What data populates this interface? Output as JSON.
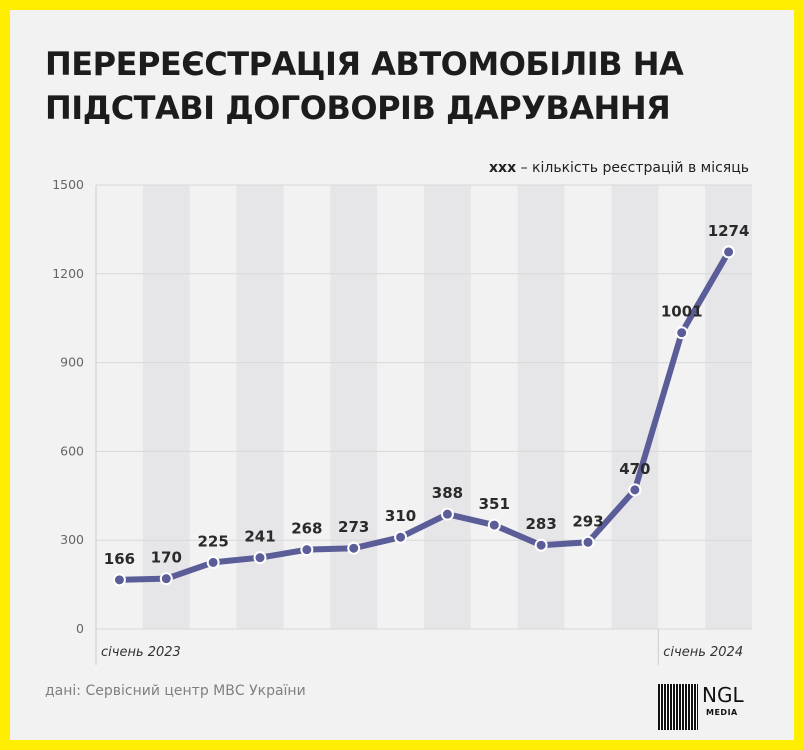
{
  "header": {
    "title_line1": "ПЕРЕРЕЄСТРАЦІЯ АВТОМОБІЛІВ НА",
    "title_line2": "ПІДСТАВІ ДОГОВОРІВ ДАРУВАННЯ"
  },
  "legend_note": {
    "marker": "xxx",
    "text": " – кількість реєстрацій в місяць"
  },
  "source": "дані: Сервісний центр МВС України",
  "logo": {
    "name": "NGL",
    "sub": "MEDIA"
  },
  "colors": {
    "background": "#ffee00",
    "card": "#f2f2f2",
    "band": "#e6e6e9",
    "line": "#5b5d99",
    "label": "#2a2a2a"
  },
  "chart_data": {
    "type": "line",
    "title": "ПЕРЕРЕЄСТРАЦІЯ АВТОМОБІЛІВ НА ПІДСТАВІ ДОГОВОРІВ ДАРУВАННЯ",
    "xlabel": "",
    "ylabel": "",
    "ylim": [
      0,
      1500
    ],
    "yticks": [
      0,
      300,
      600,
      900,
      1200,
      1500
    ],
    "x": [
      "2023-01",
      "2023-02",
      "2023-03",
      "2023-04",
      "2023-05",
      "2023-06",
      "2023-07",
      "2023-08",
      "2023-09",
      "2023-10",
      "2023-11",
      "2023-12",
      "2024-01",
      "2024-02"
    ],
    "x_tick_labels": [
      {
        "index": 0,
        "label": "січень 2023"
      },
      {
        "index": 12,
        "label": "січень 2024"
      }
    ],
    "series": [
      {
        "values": [
          166,
          170,
          225,
          241,
          268,
          273,
          310,
          388,
          351,
          283,
          293,
          470,
          1001,
          1274
        ]
      }
    ],
    "data_labels": true,
    "grid": true,
    "legend": "none"
  }
}
